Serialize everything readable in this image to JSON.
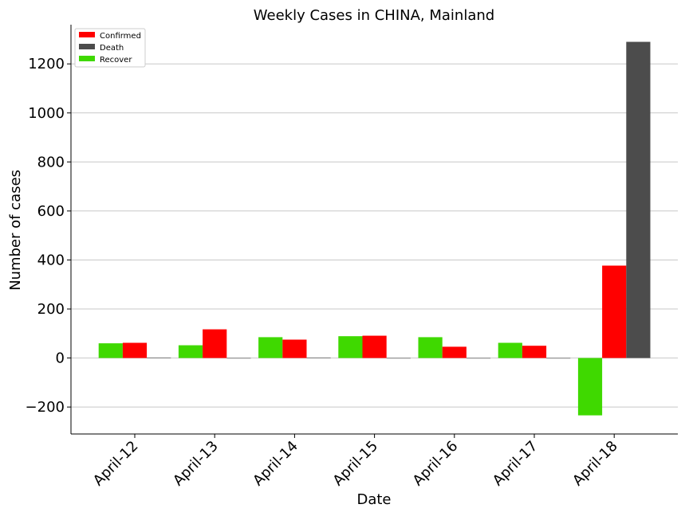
{
  "chart_data": {
    "type": "bar",
    "title": "Weekly Cases in CHINA, Mainland",
    "xlabel": "Date",
    "ylabel": "Number of cases",
    "categories": [
      "April-12",
      "April-13",
      "April-14",
      "April-15",
      "April-16",
      "April-17",
      "April-18"
    ],
    "series": [
      {
        "name": "Recover",
        "color": "#3fd900",
        "values": [
          60,
          52,
          85,
          89,
          85,
          62,
          -234
        ]
      },
      {
        "name": "Confirmed",
        "color": "#ff0000",
        "values": [
          62,
          117,
          75,
          91,
          46,
          50,
          377
        ]
      },
      {
        "name": "Death",
        "color": "#4c4c4c",
        "values": [
          2,
          0,
          2,
          0,
          0,
          0,
          1290
        ]
      }
    ],
    "legend_order": [
      "Confirmed",
      "Death",
      "Recover"
    ],
    "legend_placement": "upper-left",
    "ylim": [
      -310,
      1360
    ],
    "yticks": [
      -200,
      0,
      200,
      400,
      600,
      800,
      1000,
      1200
    ],
    "ytick_labels": [
      "−200",
      "0",
      "200",
      "400",
      "600",
      "800",
      "1000",
      "1200"
    ],
    "grid": "y"
  }
}
